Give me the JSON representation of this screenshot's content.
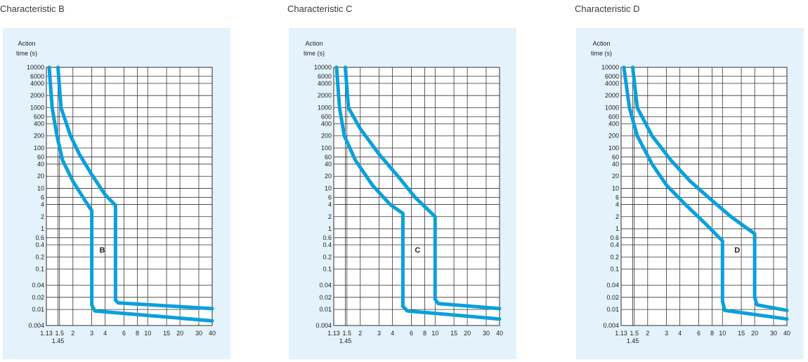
{
  "chart_data": [
    {
      "type": "line",
      "title": "Characteristic B",
      "ylabel_line1": "Action",
      "ylabel_line2": "time (s)",
      "curve_label": "B",
      "x_scale": "log",
      "y_scale": "log",
      "xlim": [
        1.13,
        40
      ],
      "ylim": [
        0.004,
        10000
      ],
      "x_ticks": [
        1.13,
        1.5,
        2,
        3,
        4,
        6,
        8,
        10,
        15,
        20,
        30,
        40
      ],
      "x_tick_labels": [
        "1.13",
        "1.5",
        "2",
        "3",
        "4",
        "6",
        "8",
        "10",
        "15",
        "20",
        "30",
        "40"
      ],
      "x_tick_extra": {
        "value": 1.45,
        "label": "1.45"
      },
      "y_ticks": [
        10000,
        6000,
        4000,
        2000,
        1000,
        600,
        400,
        200,
        100,
        60,
        40,
        20,
        10,
        6,
        4,
        2,
        1,
        0.6,
        0.4,
        0.2,
        0.1,
        0.04,
        0.02,
        0.01,
        0.004
      ],
      "y_tick_labels": [
        "10000",
        "6000",
        "4000",
        "2000",
        "1000",
        "600",
        "400",
        "200",
        "100",
        "60",
        "40",
        "20",
        "10",
        "6",
        "4",
        "2",
        "1",
        "0.6",
        "0.4",
        "0.2",
        "0.1",
        "0.04",
        "0.02",
        "0.01",
        "0.004"
      ],
      "grid": true,
      "series": [
        {
          "points": [
            [
              1.2,
              10000
            ],
            [
              1.28,
              1000
            ],
            [
              1.42,
              200
            ],
            [
              1.6,
              50
            ],
            [
              2,
              15
            ],
            [
              2.6,
              5
            ],
            [
              3,
              2.8
            ],
            [
              3,
              0.013
            ],
            [
              3.2,
              0.0092
            ],
            [
              40,
              0.0052
            ]
          ]
        },
        {
          "points": [
            [
              1.45,
              10000
            ],
            [
              1.55,
              1000
            ],
            [
              1.9,
              200
            ],
            [
              2.3,
              70
            ],
            [
              3,
              22
            ],
            [
              4,
              7
            ],
            [
              5,
              3.8
            ],
            [
              5,
              0.017
            ],
            [
              5.3,
              0.0145
            ],
            [
              40,
              0.0105
            ]
          ]
        }
      ],
      "color": "#0aa0dc"
    },
    {
      "type": "line",
      "title": "Characteristic C",
      "ylabel_line1": "Action",
      "ylabel_line2": "time (s)",
      "curve_label": "C",
      "x_scale": "log",
      "y_scale": "log",
      "xlim": [
        1.13,
        40
      ],
      "ylim": [
        0.004,
        10000
      ],
      "x_ticks": [
        1.13,
        1.5,
        2,
        3,
        4,
        6,
        8,
        10,
        15,
        20,
        30,
        40
      ],
      "x_tick_labels": [
        "1.13",
        "1.5",
        "2",
        "3",
        "4",
        "6",
        "8",
        "10",
        "15",
        "20",
        "30",
        "40"
      ],
      "x_tick_extra": {
        "value": 1.45,
        "label": "1.45"
      },
      "y_ticks": [
        10000,
        6000,
        4000,
        2000,
        1000,
        600,
        400,
        200,
        100,
        60,
        40,
        20,
        10,
        6,
        4,
        2,
        1,
        0.6,
        0.4,
        0.2,
        0.1,
        0.04,
        0.02,
        0.01,
        0.004
      ],
      "y_tick_labels": [
        "10000",
        "6000",
        "4000",
        "2000",
        "1000",
        "600",
        "400",
        "200",
        "100",
        "60",
        "40",
        "20",
        "10",
        "6",
        "4",
        "2",
        "1",
        "0.6",
        "0.4",
        "0.2",
        "0.1",
        "0.04",
        "0.02",
        "0.01",
        "0.004"
      ],
      "grid": true,
      "series": [
        {
          "points": [
            [
              1.2,
              10000
            ],
            [
              1.28,
              1000
            ],
            [
              1.42,
              200
            ],
            [
              1.8,
              50
            ],
            [
              2.6,
              12
            ],
            [
              3.8,
              4
            ],
            [
              5,
              2.4
            ],
            [
              5,
              0.012
            ],
            [
              5.5,
              0.0092
            ],
            [
              40,
              0.0058
            ]
          ]
        },
        {
          "points": [
            [
              1.45,
              10000
            ],
            [
              1.55,
              1000
            ],
            [
              2,
              300
            ],
            [
              3,
              70
            ],
            [
              4.5,
              20
            ],
            [
              6.5,
              6
            ],
            [
              10,
              2
            ],
            [
              10,
              0.018
            ],
            [
              10.7,
              0.014
            ],
            [
              40,
              0.0105
            ]
          ]
        }
      ],
      "color": "#0aa0dc"
    },
    {
      "type": "line",
      "title": "Characteristic D",
      "ylabel_line1": "Action",
      "ylabel_line2": "time (s)",
      "curve_label": "D",
      "x_scale": "log",
      "y_scale": "log",
      "xlim": [
        1.13,
        40
      ],
      "ylim": [
        0.004,
        10000
      ],
      "x_ticks": [
        1.13,
        1.5,
        2,
        3,
        4,
        6,
        8,
        10,
        15,
        20,
        30,
        40
      ],
      "x_tick_labels": [
        "1.13",
        "1.5",
        "2",
        "3",
        "4",
        "6",
        "8",
        "10",
        "15",
        "20",
        "30",
        "40"
      ],
      "x_tick_extra": {
        "value": 1.45,
        "label": "1.45"
      },
      "y_ticks": [
        10000,
        6000,
        4000,
        2000,
        1000,
        600,
        400,
        200,
        100,
        60,
        40,
        20,
        10,
        6,
        4,
        2,
        1,
        0.6,
        0.4,
        0.2,
        0.1,
        0.04,
        0.02,
        0.01,
        0.004
      ],
      "y_tick_labels": [
        "10000",
        "6000",
        "4000",
        "2000",
        "1000",
        "600",
        "400",
        "200",
        "100",
        "60",
        "40",
        "20",
        "10",
        "6",
        "4",
        "2",
        "1",
        "0.6",
        "0.4",
        "0.2",
        "0.1",
        "0.04",
        "0.02",
        "0.01",
        "0.004"
      ],
      "grid": true,
      "series": [
        {
          "points": [
            [
              1.2,
              10000
            ],
            [
              1.35,
              1000
            ],
            [
              1.6,
              200
            ],
            [
              2.2,
              40
            ],
            [
              3,
              12
            ],
            [
              4.5,
              4
            ],
            [
              7,
              1.3
            ],
            [
              10,
              0.5
            ],
            [
              10,
              0.016
            ],
            [
              10.5,
              0.0095
            ],
            [
              40,
              0.0058
            ]
          ]
        },
        {
          "points": [
            [
              1.45,
              10000
            ],
            [
              1.6,
              1000
            ],
            [
              2.2,
              200
            ],
            [
              3.3,
              50
            ],
            [
              5,
              15
            ],
            [
              8,
              5
            ],
            [
              12,
              2
            ],
            [
              20,
              0.75
            ],
            [
              20,
              0.02
            ],
            [
              21,
              0.013
            ],
            [
              40,
              0.0095
            ]
          ]
        }
      ],
      "color": "#0aa0dc"
    }
  ]
}
